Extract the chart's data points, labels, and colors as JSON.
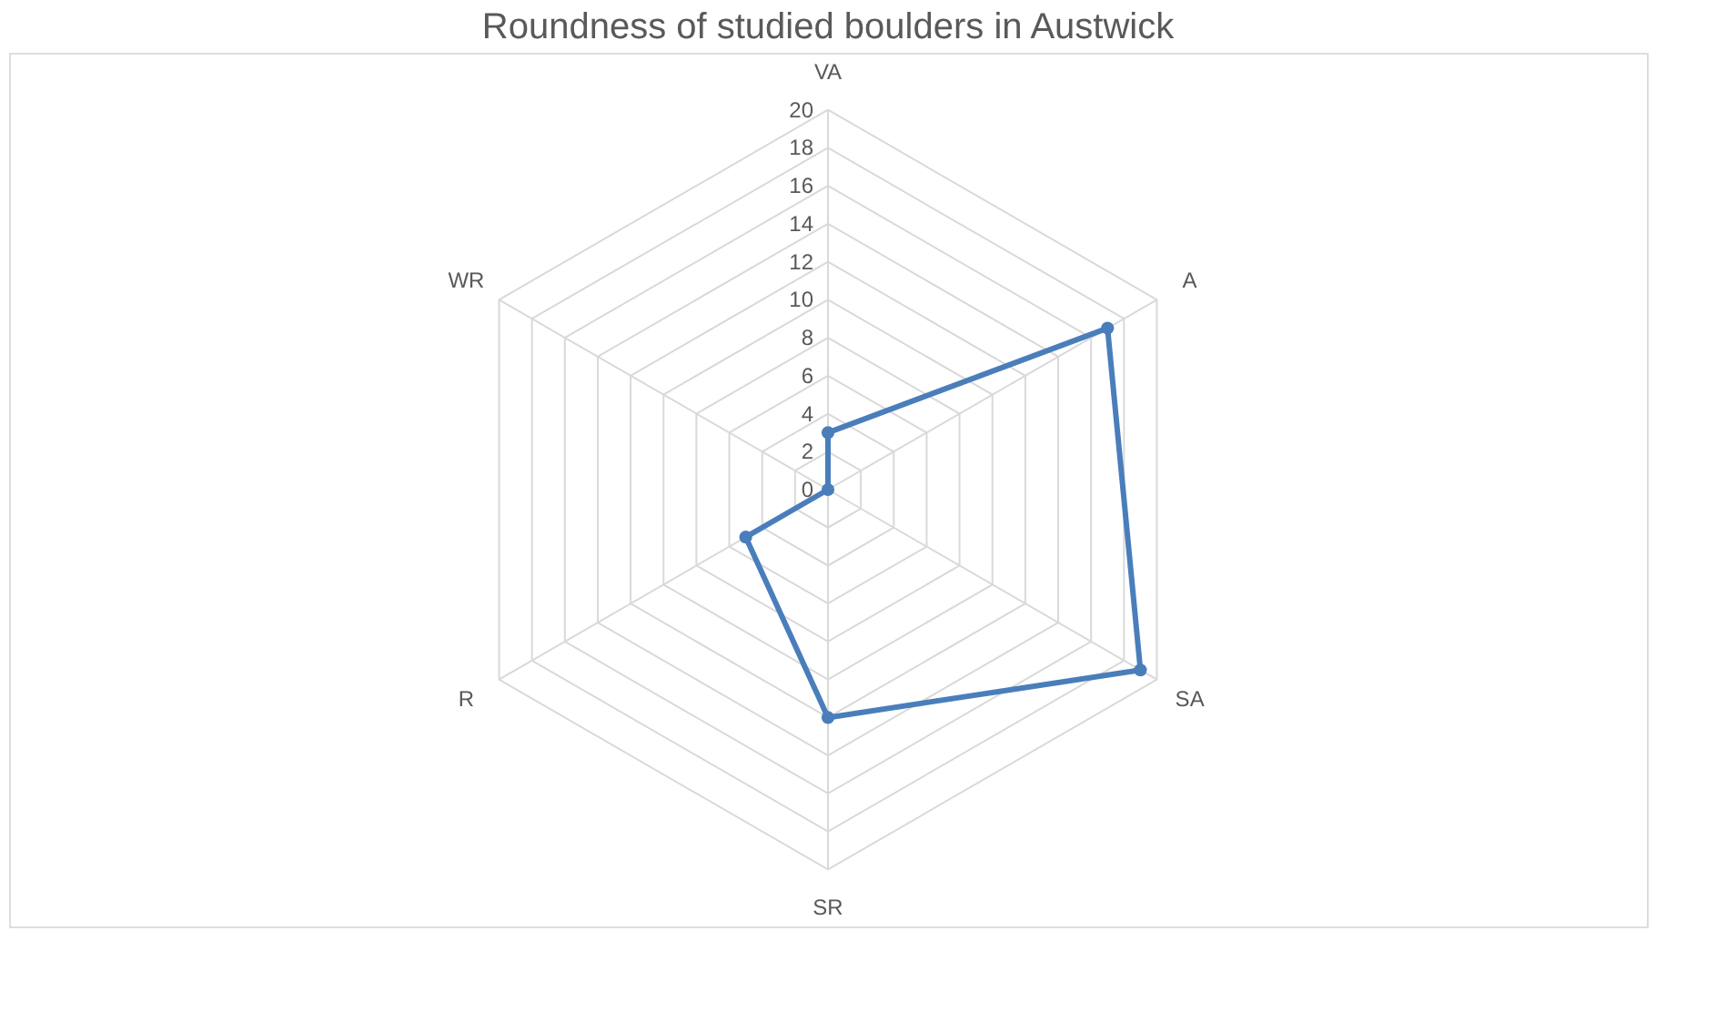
{
  "chart_data": {
    "type": "radar",
    "title": "Roundness of studied boulders in Austwick",
    "categories": [
      "VA",
      "A",
      "SA",
      "SR",
      "R",
      "WR"
    ],
    "series": [
      {
        "color": "#4a7ebb",
        "values": [
          3,
          17,
          19,
          12,
          5,
          0
        ]
      }
    ],
    "ylim": [
      0,
      20
    ],
    "yticks": [
      0,
      2,
      4,
      6,
      8,
      10,
      12,
      14,
      16,
      18,
      20
    ],
    "grid": true,
    "marker": "circle",
    "line_style": "solid",
    "legend": false
  }
}
